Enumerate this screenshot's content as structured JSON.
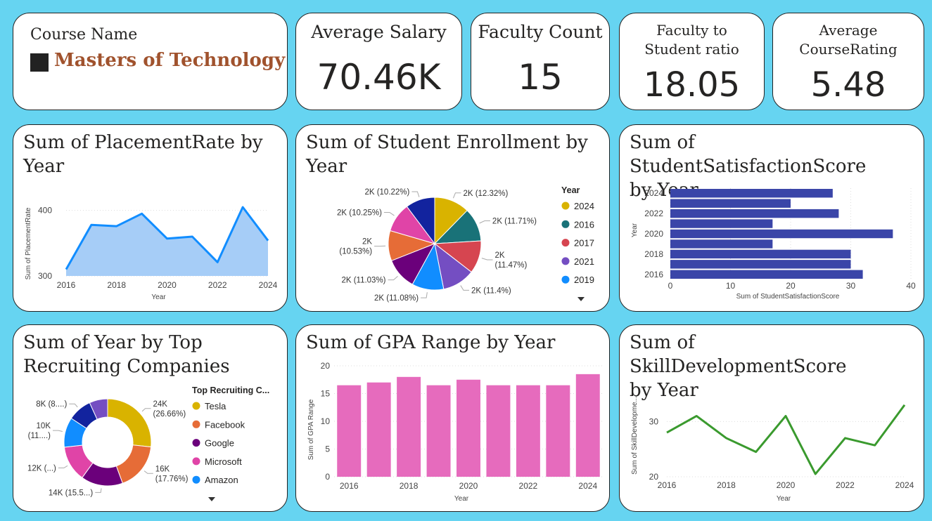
{
  "kpis": {
    "course": {
      "label": "Course Name",
      "value": "Masters of Technology"
    },
    "salary": {
      "label": "Average Salary",
      "value": "70.46K"
    },
    "faculty": {
      "label": "Faculty Count",
      "value": "15"
    },
    "ratio": {
      "label1": "Faculty to",
      "label2": "Student ratio",
      "value": "18.05"
    },
    "rating": {
      "label1": "Average",
      "label2": "CourseRating",
      "value": "5.48"
    }
  },
  "titles": {
    "placement": [
      "Sum of PlacementRate by",
      "Year"
    ],
    "enrollment": [
      "Sum of Student Enrollment by",
      "Year"
    ],
    "satisfaction": [
      "Sum of StudentSatisfactionScore",
      "by Year"
    ],
    "recruiting": [
      "Sum of Year by Top",
      "Recruiting Companies"
    ],
    "gpa": [
      "Sum of GPA Range by Year"
    ],
    "skill": [
      "Sum of SkillDevelopmentScore",
      "by Year"
    ]
  },
  "colors": {
    "area_line": "#118dff",
    "area_fill": "#a6cdf7",
    "bar_navy": "#3a45a8",
    "bar_pink": "#e66bbd",
    "line_green": "#3a9a2e",
    "accent_text": "#a0522d"
  },
  "chart_data": [
    {
      "id": "placement",
      "type": "area",
      "x": [
        2016,
        2017,
        2018,
        2019,
        2020,
        2021,
        2022,
        2023,
        2024
      ],
      "values": [
        310,
        378,
        376,
        395,
        357,
        360,
        321,
        405,
        354
      ],
      "xlabel": "Year",
      "ylabel": "Sum of PlacementRate",
      "ylim": [
        300,
        420
      ],
      "xticks": [
        "2016",
        "2018",
        "2020",
        "2022",
        "2024"
      ],
      "yticks": [
        "300",
        "400"
      ]
    },
    {
      "id": "enrollment",
      "type": "pie",
      "slices": [
        {
          "label": "2K (12.32%)",
          "pct": 12.32,
          "color": "#d9b300"
        },
        {
          "label": "2K (11.71%)",
          "pct": 11.71,
          "color": "#197278"
        },
        {
          "label": "2K",
          "label2": "(11.47%)",
          "pct": 11.47,
          "color": "#d64550"
        },
        {
          "label": "2K (11.4%)",
          "pct": 11.4,
          "color": "#744ec2"
        },
        {
          "label": "2K (11.08%)",
          "pct": 11.08,
          "color": "#118dff"
        },
        {
          "label": "2K (11.03%)",
          "pct": 11.03,
          "color": "#6b007b"
        },
        {
          "label": "2K",
          "label2": "(10.53%)",
          "pct": 10.53,
          "color": "#e66c37"
        },
        {
          "label": "2K (10.25%)",
          "pct": 10.25,
          "color": "#e044a7"
        },
        {
          "label": "2K (10.22%)",
          "pct": 10.22,
          "color": "#12239e"
        }
      ],
      "legend_title": "Year",
      "legend": [
        {
          "name": "2024",
          "color": "#d9b300"
        },
        {
          "name": "2016",
          "color": "#197278"
        },
        {
          "name": "2017",
          "color": "#d64550"
        },
        {
          "name": "2021",
          "color": "#744ec2"
        },
        {
          "name": "2019",
          "color": "#118dff"
        }
      ]
    },
    {
      "id": "satisfaction",
      "type": "bar",
      "categories": [
        2024,
        2023,
        2022,
        2021,
        2020,
        2019,
        2018,
        2017,
        2016
      ],
      "values": [
        27,
        20,
        28,
        17,
        37,
        17,
        30,
        30,
        32
      ],
      "xlabel": "Sum of StudentSatisfactionScore",
      "ylabel": "Year",
      "xlim": [
        0,
        40
      ],
      "xticks": [
        "0",
        "10",
        "20",
        "30",
        "40"
      ],
      "yticks": [
        "2024",
        "2022",
        "2020",
        "2018",
        "2016"
      ]
    },
    {
      "id": "recruiting",
      "type": "pie",
      "slices": [
        {
          "label": "24K",
          "label2": "(26.66%)",
          "pct": 26.66,
          "color": "#d9b300"
        },
        {
          "label": "16K",
          "label2": "(17.76%)",
          "pct": 17.76,
          "color": "#e66c37"
        },
        {
          "label": "14K (15.5...)",
          "pct": 15.5,
          "color": "#6b007b"
        },
        {
          "label": "12K (...)",
          "pct": 13.3,
          "color": "#e044a7"
        },
        {
          "label": "10K",
          "label2": "(11....)",
          "pct": 11.1,
          "color": "#118dff"
        },
        {
          "label": "8K (8....)",
          "pct": 8.9,
          "color": "#12239e"
        },
        {
          "label": "",
          "pct": 6.78,
          "color": "#744ec2"
        }
      ],
      "legend_title": "Top Recruiting C...",
      "legend": [
        {
          "name": "Tesla",
          "color": "#d9b300"
        },
        {
          "name": "Facebook",
          "color": "#e66c37"
        },
        {
          "name": "Google",
          "color": "#6b007b"
        },
        {
          "name": "Microsoft",
          "color": "#e044a7"
        },
        {
          "name": "Amazon",
          "color": "#118dff"
        }
      ]
    },
    {
      "id": "gpa",
      "type": "bar",
      "categories": [
        2016,
        2017,
        2018,
        2019,
        2020,
        2021,
        2022,
        2023,
        2024
      ],
      "values": [
        16.5,
        17,
        18,
        16.5,
        17.5,
        16.5,
        16.5,
        16.5,
        18.5
      ],
      "xlabel": "Year",
      "ylabel": "Sum of GPA Range",
      "ylim": [
        0,
        20
      ],
      "xticks": [
        "2016",
        "2018",
        "2020",
        "2022",
        "2024"
      ],
      "yticks": [
        "0",
        "5",
        "10",
        "15",
        "20"
      ]
    },
    {
      "id": "skill",
      "type": "line",
      "x": [
        2016,
        2017,
        2018,
        2019,
        2020,
        2021,
        2022,
        2023,
        2024
      ],
      "values": [
        28,
        31,
        27,
        24.5,
        31,
        20.5,
        27,
        25.7,
        33
      ],
      "xlabel": "Year",
      "ylabel": "Sum of SkillDevelopme...",
      "ylim": [
        20,
        35
      ],
      "xticks": [
        "2016",
        "2018",
        "2020",
        "2022",
        "2024"
      ],
      "yticks": [
        "20",
        "30"
      ]
    }
  ]
}
